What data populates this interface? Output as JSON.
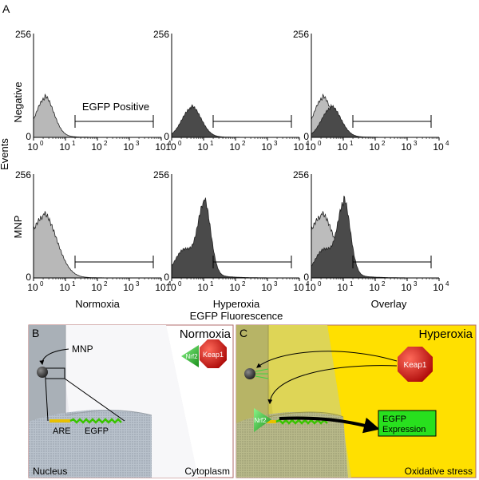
{
  "panel_a": {
    "letter": "A",
    "y_axis_label": "Events",
    "x_axis_label": "EGFP Fluorescence",
    "row_labels": [
      "Negative",
      "MNP"
    ],
    "column_labels": [
      "Normoxia",
      "Hyperoxia",
      "Overlay"
    ],
    "y_max_tick": "256",
    "y_min_tick": "0",
    "x_ticks": [
      {
        "base": "10",
        "exp": "0"
      },
      {
        "base": "10",
        "exp": "1"
      },
      {
        "base": "10",
        "exp": "2"
      },
      {
        "base": "10",
        "exp": "3"
      },
      {
        "base": "10",
        "exp": "4"
      }
    ],
    "gate_label": "EGFP Positive",
    "gate_range_log10": [
      1.3,
      3.75
    ]
  },
  "chart_data": [
    {
      "type": "area",
      "row": "Negative",
      "column": "Normoxia",
      "xscale": "log",
      "xlim": [
        1,
        10000
      ],
      "ylim": [
        0,
        256
      ],
      "series": [
        {
          "color": "#b8b8b8",
          "peak_log10": 0.35,
          "width": 0.28,
          "peak_height": 95
        }
      ]
    },
    {
      "type": "area",
      "row": "Negative",
      "column": "Hyperoxia",
      "xscale": "log",
      "xlim": [
        1,
        10000
      ],
      "ylim": [
        0,
        256
      ],
      "series": [
        {
          "color": "#4a4a4a",
          "peak_log10": 0.62,
          "width": 0.3,
          "peak_height": 72
        }
      ]
    },
    {
      "type": "area",
      "row": "Negative",
      "column": "Overlay",
      "xscale": "log",
      "xlim": [
        1,
        10000
      ],
      "ylim": [
        0,
        256
      ],
      "series": [
        {
          "color": "#b8b8b8",
          "peak_log10": 0.35,
          "width": 0.28,
          "peak_height": 95
        },
        {
          "color": "#4a4a4a",
          "peak_log10": 0.62,
          "width": 0.3,
          "peak_height": 72
        }
      ]
    },
    {
      "type": "area",
      "row": "MNP",
      "column": "Normoxia",
      "xscale": "log",
      "xlim": [
        1,
        10000
      ],
      "ylim": [
        0,
        256
      ],
      "series": [
        {
          "color": "#b8b8b8",
          "peak_log10": 0.3,
          "width": 0.42,
          "peak_height": 150
        }
      ]
    },
    {
      "type": "area",
      "row": "MNP",
      "column": "Hyperoxia",
      "xscale": "log",
      "xlim": [
        1,
        10000
      ],
      "ylim": [
        0,
        256
      ],
      "series": [
        {
          "color": "#4a4a4a",
          "peak_log10": 1.02,
          "width": 0.2,
          "peak_height": 175,
          "shoulder_log10": 0.4,
          "shoulder_height": 70
        }
      ]
    },
    {
      "type": "area",
      "row": "MNP",
      "column": "Overlay",
      "xscale": "log",
      "xlim": [
        1,
        10000
      ],
      "ylim": [
        0,
        256
      ],
      "series": [
        {
          "color": "#b8b8b8",
          "peak_log10": 0.3,
          "width": 0.42,
          "peak_height": 150
        },
        {
          "color": "#4a4a4a",
          "peak_log10": 1.02,
          "width": 0.2,
          "peak_height": 175,
          "shoulder_log10": 0.4,
          "shoulder_height": 70
        }
      ]
    }
  ],
  "panel_b": {
    "letter": "B",
    "title": "Normoxia",
    "mnp_label": "MNP",
    "nrf2_label": "Nrf2",
    "keap1_label": "Keap1",
    "are_label": "ARE",
    "egfp_label": "EGFP",
    "nucleus_label": "Nucleus",
    "cytoplasm_label": "Cytoplasm",
    "background_color": "#ffffff"
  },
  "panel_c": {
    "letter": "C",
    "title": "Hyperoxia",
    "keap1_label": "Keap1",
    "nrf2_label": "Nrf2",
    "expression_label_line1": "EGFP",
    "expression_label_line2": "Expression",
    "stress_label": "Oxidative stress",
    "background_color": "#ffe000"
  }
}
